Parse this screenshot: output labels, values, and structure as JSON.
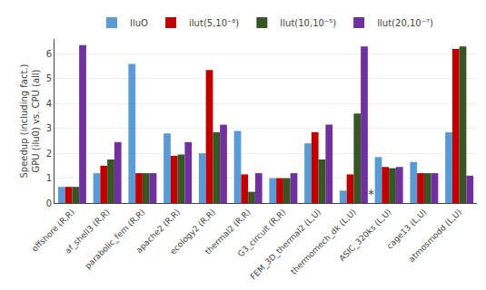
{
  "chart_data": {
    "type": "bar",
    "categories": [
      "offshore (R,R)",
      "af_shell3 (R,R)",
      "parabolic_fem (R,R)",
      "apache2 (R,R)",
      "ecology2 (R,R)",
      "thermal2 (R,R)",
      "G3_circuit (R,R)",
      "FEM_3D_thermal2 (L,U)",
      "thermomech_dk (L,U)",
      "ASIC_320ks (L,U)",
      "cage13 (L,U)",
      "atmosmodd (L,U)"
    ],
    "series": [
      {
        "name": "IluO",
        "color": "#5B9BD5",
        "values": [
          0.65,
          1.2,
          5.6,
          2.8,
          2.0,
          2.9,
          1.0,
          2.4,
          0.5,
          1.85,
          1.65,
          2.85
        ]
      },
      {
        "name": "ilut(5,10⁻⁸)",
        "color": "#C00000",
        "values": [
          0.65,
          1.5,
          1.2,
          1.9,
          5.35,
          1.15,
          1.0,
          2.85,
          1.15,
          1.45,
          1.2,
          6.2
        ]
      },
      {
        "name": "Ilut(10,10⁻⁵)",
        "color": "#375623",
        "values": [
          0.65,
          1.75,
          1.2,
          1.95,
          2.85,
          0.45,
          1.0,
          1.75,
          3.6,
          1.4,
          1.2,
          6.3
        ]
      },
      {
        "name": "Ilut(20,10⁻⁷)",
        "color": "#7030A0",
        "values": [
          6.35,
          2.45,
          1.2,
          2.45,
          3.15,
          1.2,
          1.2,
          3.15,
          6.3,
          1.45,
          1.2,
          1.1
        ]
      }
    ],
    "ylabel": "Speedup (including fact.)\nGPU (ilu0) vs. CPU (all)",
    "ylim": [
      0,
      6.6
    ],
    "yticks": [
      0,
      1,
      2,
      3,
      4,
      5,
      6
    ],
    "grid": true,
    "legend": "top",
    "annotation": "*"
  }
}
